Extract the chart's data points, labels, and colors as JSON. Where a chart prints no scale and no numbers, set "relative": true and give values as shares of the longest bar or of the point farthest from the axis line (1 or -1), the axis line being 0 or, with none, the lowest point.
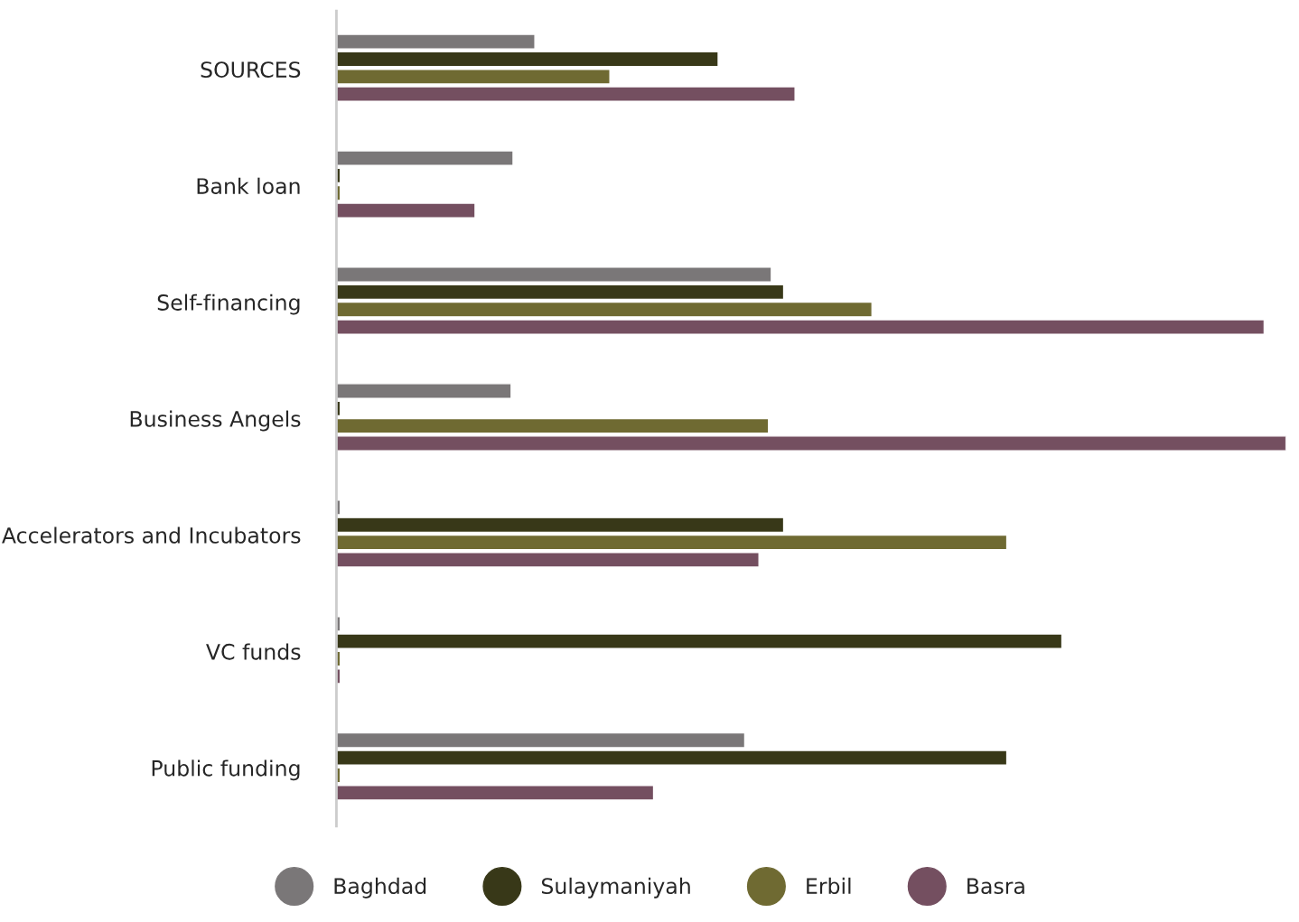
{
  "chart_data": {
    "type": "bar",
    "orientation": "horizontal",
    "relative": true,
    "legend": "bottom",
    "categories": [
      "SOURCES",
      "Bank loan",
      "Self-financing",
      "Business Angels",
      "Accelerators and Incubators",
      "VC funds",
      "Public funding"
    ],
    "series": [
      {
        "name": "Baghdad",
        "color": "#7a7778",
        "values": [
          0.209,
          0.186,
          0.458,
          0.184,
          0.004,
          0.004,
          0.43
        ]
      },
      {
        "name": "Sulaymaniyah",
        "color": "#383818",
        "values": [
          0.402,
          0.004,
          0.471,
          0.004,
          0.471,
          0.764,
          0.706
        ]
      },
      {
        "name": "Erbil",
        "color": "#6f6a32",
        "values": [
          0.288,
          0.004,
          0.564,
          0.455,
          0.706,
          0.004,
          0.004
        ]
      },
      {
        "name": "Basra",
        "color": "#744f60",
        "values": [
          0.483,
          0.146,
          0.977,
          1,
          0.445,
          0.004,
          0.334
        ]
      }
    ]
  }
}
